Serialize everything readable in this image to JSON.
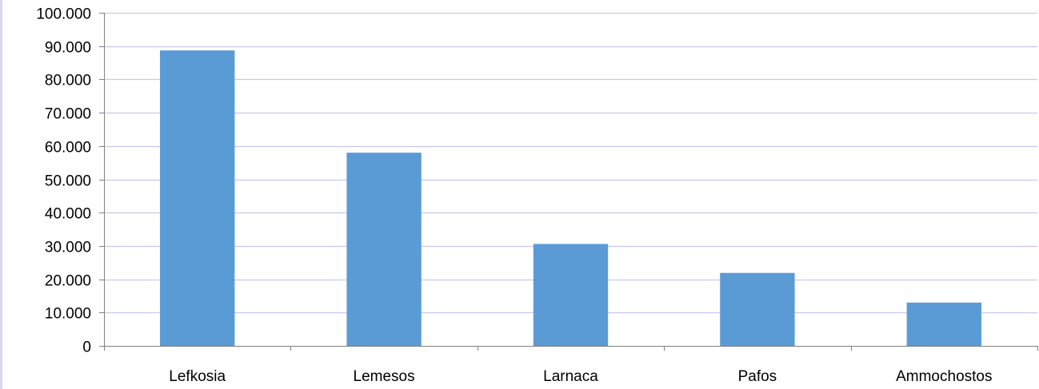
{
  "chart_data": {
    "type": "bar",
    "title": "",
    "xlabel": "",
    "ylabel": "",
    "categories": [
      "Lefkosia",
      "Lemesos",
      "Larnaca",
      "Pafos",
      "Ammochostos"
    ],
    "values": [
      88700,
      58000,
      30600,
      21900,
      13000
    ],
    "ylim": [
      0,
      100000
    ],
    "y_ticks": [
      0,
      10000,
      20000,
      30000,
      40000,
      50000,
      60000,
      70000,
      80000,
      90000,
      100000
    ],
    "y_tick_labels": [
      "0",
      "10.000",
      "20.000",
      "30.000",
      "40.000",
      "50.000",
      "60.000",
      "70.000",
      "80.000",
      "90.000",
      "100.000"
    ],
    "grid": true,
    "legend": "none",
    "colors": {
      "bar": "#5b9bd5",
      "grid": "#c8c8f0",
      "axis": "#808080"
    }
  }
}
